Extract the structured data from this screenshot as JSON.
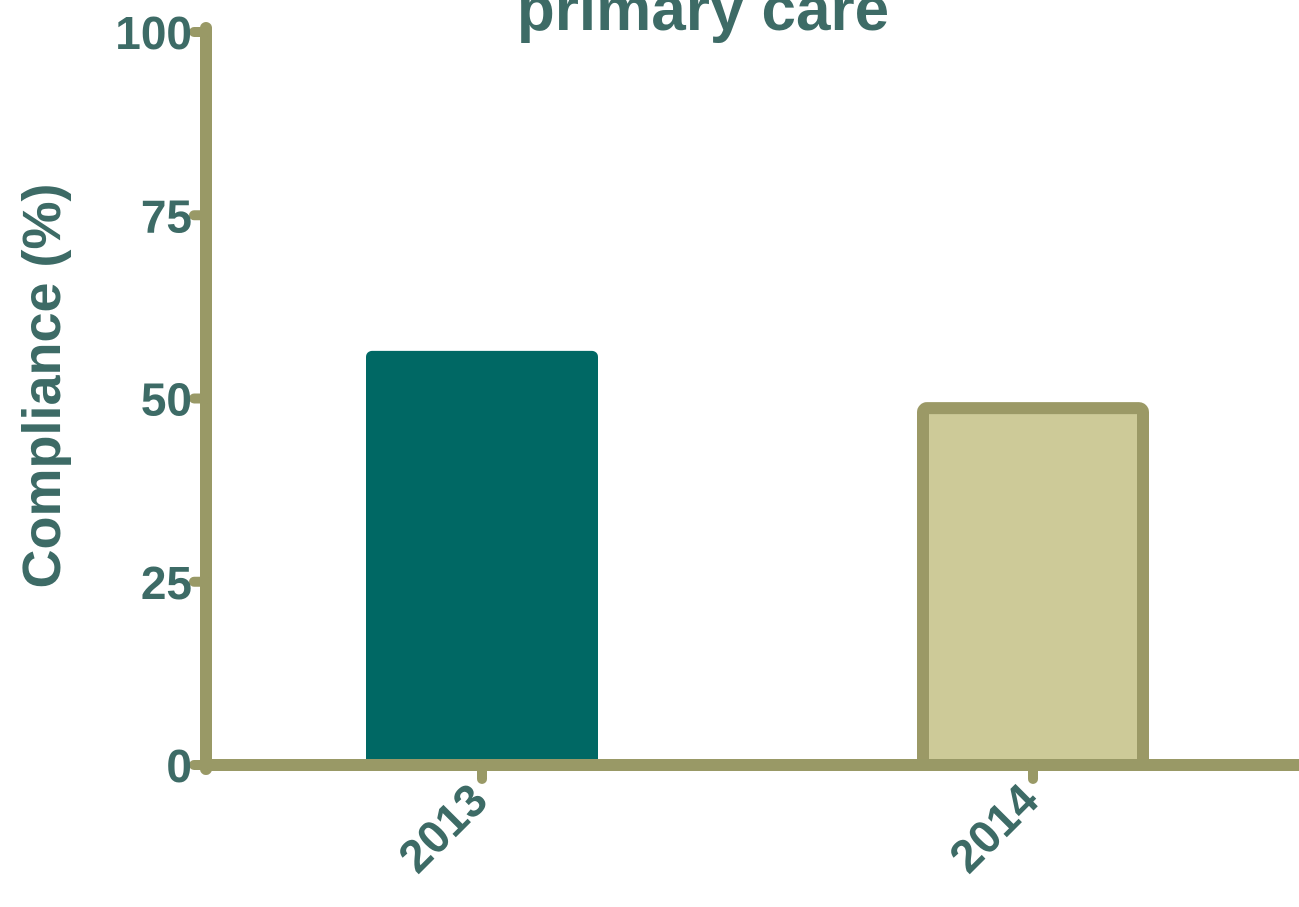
{
  "chart_data": {
    "type": "bar",
    "title": "primary care",
    "ylabel": "Compliance (%)",
    "xlabel": "",
    "ylim": [
      0,
      100
    ],
    "yticks": [
      0,
      25,
      50,
      75,
      100
    ],
    "categories": [
      "2013",
      "2014"
    ],
    "values": [
      56.5,
      49.5
    ],
    "grid": false,
    "colors": {
      "axis": "#999966",
      "text": "#3d6b66",
      "bar_2013_fill": "#006864",
      "bar_2014_fill": "#cdca98",
      "bar_2014_stroke": "#9b9966"
    }
  }
}
